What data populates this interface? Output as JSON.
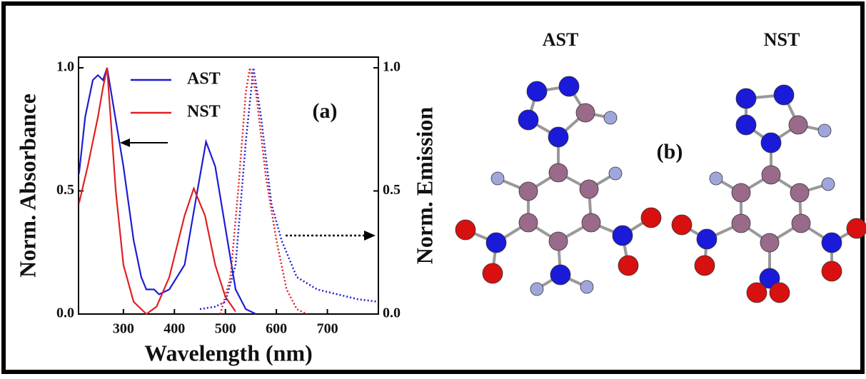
{
  "chart_data": {
    "type": "line",
    "x_label": "Wavelength (nm)",
    "y_label": "Norm. Absorbance",
    "y2_label": "Norm. Emission",
    "annotation": "(a)",
    "xlim": [
      212,
      800
    ],
    "xticks": [
      300,
      400,
      500,
      600,
      700
    ],
    "ylim": [
      0,
      1
    ],
    "yticks": [
      {
        "value": 0,
        "label": "0.0"
      },
      {
        "value": 0.5,
        "label": "0.5"
      },
      {
        "value": 1,
        "label": "1.0"
      }
    ],
    "y2lim": [
      0,
      1
    ],
    "y2ticks": [
      {
        "value": 0,
        "label": "0.0"
      },
      {
        "value": 0.5,
        "label": "0.5"
      },
      {
        "value": 1,
        "label": "1.0"
      }
    ],
    "series": [
      {
        "name": "AST",
        "color": "#1c1cd4",
        "linestyle": "solid",
        "x": [
          213,
          225,
          240,
          250,
          260,
          268,
          280,
          300,
          320,
          335,
          345,
          360,
          370,
          390,
          420,
          445,
          462,
          480,
          500,
          520,
          540,
          560
        ],
        "values": [
          0.57,
          0.8,
          0.95,
          0.97,
          0.95,
          1.0,
          0.85,
          0.6,
          0.3,
          0.15,
          0.1,
          0.1,
          0.08,
          0.1,
          0.2,
          0.5,
          0.7,
          0.6,
          0.35,
          0.1,
          0.02,
          0
        ]
      },
      {
        "name": "NST",
        "color": "#e02020",
        "linestyle": "solid",
        "x": [
          213,
          230,
          250,
          260,
          268,
          285,
          300,
          320,
          345,
          365,
          390,
          420,
          438,
          460,
          480,
          500,
          520
        ],
        "values": [
          0.45,
          0.6,
          0.8,
          0.92,
          1.0,
          0.5,
          0.2,
          0.05,
          0.0,
          0.03,
          0.15,
          0.4,
          0.51,
          0.4,
          0.2,
          0.07,
          0.01
        ]
      },
      {
        "name": "AST",
        "color": "#1c1cd4",
        "linestyle": "dotted",
        "axis": "y2",
        "x": [
          450,
          480,
          500,
          520,
          540,
          555,
          570,
          590,
          610,
          640,
          680,
          720,
          760,
          800
        ],
        "values": [
          0.02,
          0.03,
          0.05,
          0.2,
          0.7,
          1.0,
          0.8,
          0.45,
          0.3,
          0.15,
          0.1,
          0.08,
          0.06,
          0.05
        ]
      },
      {
        "name": "NST",
        "color": "#e02020",
        "linestyle": "dotted",
        "axis": "y2",
        "x": [
          490,
          510,
          525,
          540,
          548,
          560,
          580,
          600,
          620,
          640,
          660
        ],
        "values": [
          0.0,
          0.15,
          0.5,
          0.9,
          1.0,
          0.9,
          0.55,
          0.3,
          0.1,
          0.02,
          0
        ]
      }
    ]
  },
  "panel_b": {
    "label": "(b)",
    "molecules": [
      {
        "name": "AST"
      },
      {
        "name": "NST"
      }
    ]
  }
}
